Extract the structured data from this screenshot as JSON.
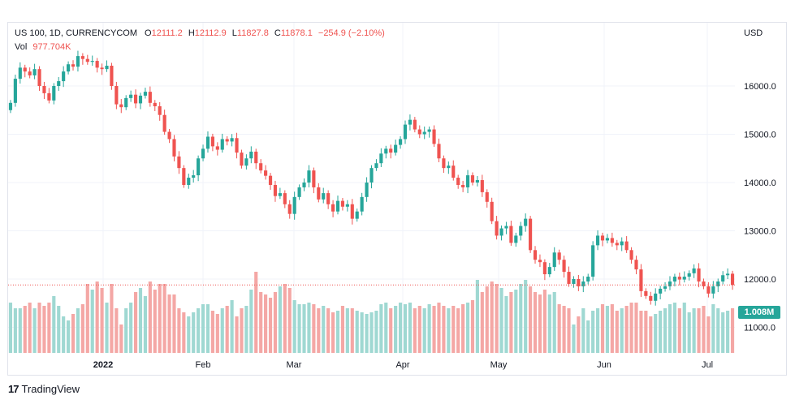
{
  "header": {
    "symbol": "US 100, 1D, CURRENCYCOM",
    "open_key": "O",
    "open": "12111.2",
    "high_key": "H",
    "high": "12112.9",
    "low_key": "L",
    "low": "11827.8",
    "close_key": "C",
    "close": "11878.1",
    "change": "−254.9 (−2.10%)",
    "vol_key": "Vol",
    "vol": "977.704K"
  },
  "currency_label": "USD",
  "volume_badge": "1.008M",
  "footer": {
    "brand": "TradingView"
  },
  "colors": {
    "up": "#26a69a",
    "down": "#ef5350",
    "up_vol": "#9fd8d2",
    "down_vol": "#f4a7a5"
  },
  "chart_data": {
    "type": "candlestick",
    "price_axis": {
      "ticks": [
        11000,
        12000,
        13000,
        14000,
        15000,
        16000
      ],
      "tick_labels": [
        "11000.0",
        "12000.0",
        "13000.0",
        "14000.0",
        "15000.0",
        "16000.0"
      ],
      "range": [
        10350,
        16950
      ]
    },
    "x_tick_labels": [
      "2022",
      "Feb",
      "Mar",
      "Apr",
      "May",
      "Jun",
      "Jul"
    ],
    "last_close": 11878.1,
    "close_series": [
      15650,
      16150,
      16380,
      16300,
      16220,
      16350,
      16000,
      15850,
      15700,
      16000,
      16100,
      16300,
      16450,
      16400,
      16620,
      16560,
      16500,
      16520,
      16380,
      16350,
      16420,
      16000,
      15620,
      15560,
      15750,
      15820,
      15640,
      15800,
      15880,
      15650,
      15580,
      15400,
      15050,
      14900,
      14540,
      14300,
      13950,
      14100,
      14150,
      14500,
      14700,
      14950,
      14750,
      14680,
      14900,
      14850,
      14920,
      14620,
      14350,
      14500,
      14640,
      14400,
      14250,
      14140,
      13950,
      13720,
      13780,
      13550,
      13350,
      13700,
      13900,
      14000,
      14250,
      13900,
      13650,
      13780,
      13550,
      13400,
      13620,
      13500,
      13550,
      13250,
      13400,
      13700,
      14000,
      14300,
      14400,
      14600,
      14700,
      14620,
      14780,
      14900,
      15200,
      15300,
      15100,
      15000,
      15050,
      15100,
      14800,
      14500,
      14300,
      14350,
      14100,
      13950,
      13900,
      14150,
      14000,
      14050,
      13800,
      13600,
      13200,
      12900,
      13050,
      13100,
      12750,
      12900,
      13100,
      13250,
      12600,
      12400,
      12350,
      12100,
      12250,
      12550,
      12400,
      12150,
      11900,
      12000,
      11850,
      11950,
      12050,
      12700,
      12900,
      12800,
      12850,
      12750,
      12700,
      12780,
      12600,
      12400,
      12200,
      11750,
      11650,
      11550,
      11700,
      11800,
      11850,
      11950,
      12050,
      11990,
      12050,
      12120,
      12220,
      11950,
      11850,
      11700,
      11850,
      11950,
      12080,
      12111,
      11878
    ],
    "volume_series": [
      0.62,
      0.55,
      0.55,
      0.58,
      0.62,
      0.55,
      0.62,
      0.58,
      0.62,
      0.7,
      0.58,
      0.45,
      0.4,
      0.48,
      0.55,
      0.6,
      0.85,
      0.78,
      0.88,
      0.8,
      0.62,
      0.85,
      0.55,
      0.35,
      0.55,
      0.62,
      0.75,
      0.8,
      0.7,
      0.88,
      0.78,
      0.85,
      0.85,
      0.72,
      0.72,
      0.55,
      0.5,
      0.45,
      0.5,
      0.55,
      0.6,
      0.6,
      0.52,
      0.48,
      0.55,
      0.58,
      0.65,
      0.45,
      0.55,
      0.58,
      0.78,
      1.0,
      0.75,
      0.72,
      0.68,
      0.75,
      0.82,
      0.85,
      0.8,
      0.65,
      0.6,
      0.6,
      0.62,
      0.6,
      0.55,
      0.58,
      0.55,
      0.5,
      0.52,
      0.58,
      0.55,
      0.55,
      0.52,
      0.5,
      0.48,
      0.5,
      0.52,
      0.6,
      0.62,
      0.55,
      0.58,
      0.62,
      0.6,
      0.62,
      0.55,
      0.58,
      0.55,
      0.6,
      0.58,
      0.62,
      0.58,
      0.55,
      0.58,
      0.55,
      0.6,
      0.62,
      0.65,
      0.9,
      0.75,
      0.82,
      0.88,
      0.85,
      0.8,
      0.7,
      0.75,
      0.78,
      0.85,
      0.9,
      0.82,
      0.75,
      0.72,
      0.78,
      0.72,
      0.75,
      0.6,
      0.58,
      0.55,
      0.35,
      0.45,
      0.55,
      0.4,
      0.52,
      0.55,
      0.6,
      0.58,
      0.6,
      0.52,
      0.55,
      0.58,
      0.62,
      0.62,
      0.52,
      0.52,
      0.45,
      0.48,
      0.52,
      0.55,
      0.6,
      0.62,
      0.55,
      0.62,
      0.5,
      0.55,
      0.55,
      0.58,
      0.45,
      0.6,
      0.55,
      0.5,
      0.52,
      0.55,
      0.6,
      0.5
    ]
  }
}
